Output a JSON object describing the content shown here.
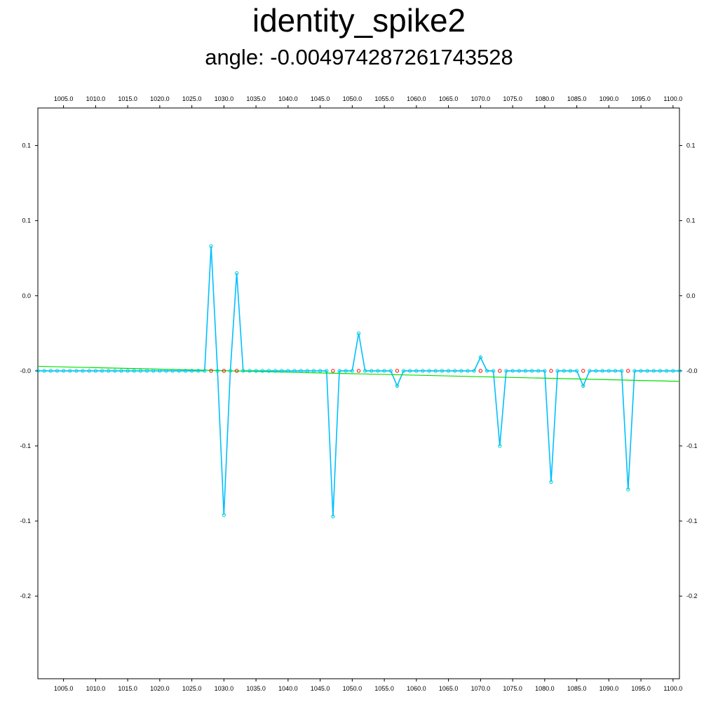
{
  "chart_data": {
    "type": "line",
    "title": "identity_spike2",
    "subtitle": "angle: -0.004974287261743528",
    "xlim": [
      1001,
      1101
    ],
    "ylim": [
      -0.255,
      0.125
    ],
    "x_ticks": [
      1005,
      1010,
      1015,
      1020,
      1025,
      1030,
      1035,
      1040,
      1045,
      1050,
      1055,
      1060,
      1065,
      1070,
      1075,
      1080,
      1085,
      1090,
      1095,
      1100
    ],
    "x_tick_labels": [
      "1005.0",
      "1010.0",
      "1015.0",
      "1020.0",
      "1025.0",
      "1030.0",
      "1035.0",
      "1040.0",
      "1045.0",
      "1050.0",
      "1055.0",
      "1060.0",
      "1065.0",
      "1070.0",
      "1075.0",
      "1080.0",
      "1085.0",
      "1090.0",
      "1095.0",
      "1100.0"
    ],
    "y_ticks": [
      0.1,
      0.05,
      0.0,
      -0.05,
      -0.1,
      -0.15,
      -0.2
    ],
    "y_tick_labels": [
      "0.1",
      "0.1",
      "0.0",
      "-0.0",
      "-0.1",
      "-0.1",
      "-0.2"
    ],
    "grid": false,
    "series": [
      {
        "color": "#00bfff",
        "marker_color": "#00ced1",
        "x_start": 1001,
        "x_end": 1101,
        "base": -0.05,
        "spikes": [
          {
            "x": 1028,
            "y": 0.033
          },
          {
            "x": 1030,
            "y": -0.146
          },
          {
            "x": 1032,
            "y": 0.015
          },
          {
            "x": 1047,
            "y": -0.147
          },
          {
            "x": 1051,
            "y": -0.025
          },
          {
            "x": 1057,
            "y": -0.06
          },
          {
            "x": 1070,
            "y": -0.041
          },
          {
            "x": 1073,
            "y": -0.1
          },
          {
            "x": 1081,
            "y": -0.124
          },
          {
            "x": 1086,
            "y": -0.06
          },
          {
            "x": 1093,
            "y": -0.129
          }
        ]
      },
      {
        "color": "#ff0000",
        "x": [
          1028,
          1030,
          1032,
          1047,
          1051,
          1057,
          1070,
          1073,
          1081,
          1086,
          1093
        ],
        "y": [
          -0.05,
          -0.05,
          -0.05,
          -0.05,
          -0.05,
          -0.05,
          -0.05,
          -0.05,
          -0.05,
          -0.05,
          -0.05
        ]
      },
      {
        "color": "#00e000",
        "x": [
          1001,
          1101
        ],
        "y": [
          -0.047,
          -0.057
        ]
      }
    ]
  }
}
